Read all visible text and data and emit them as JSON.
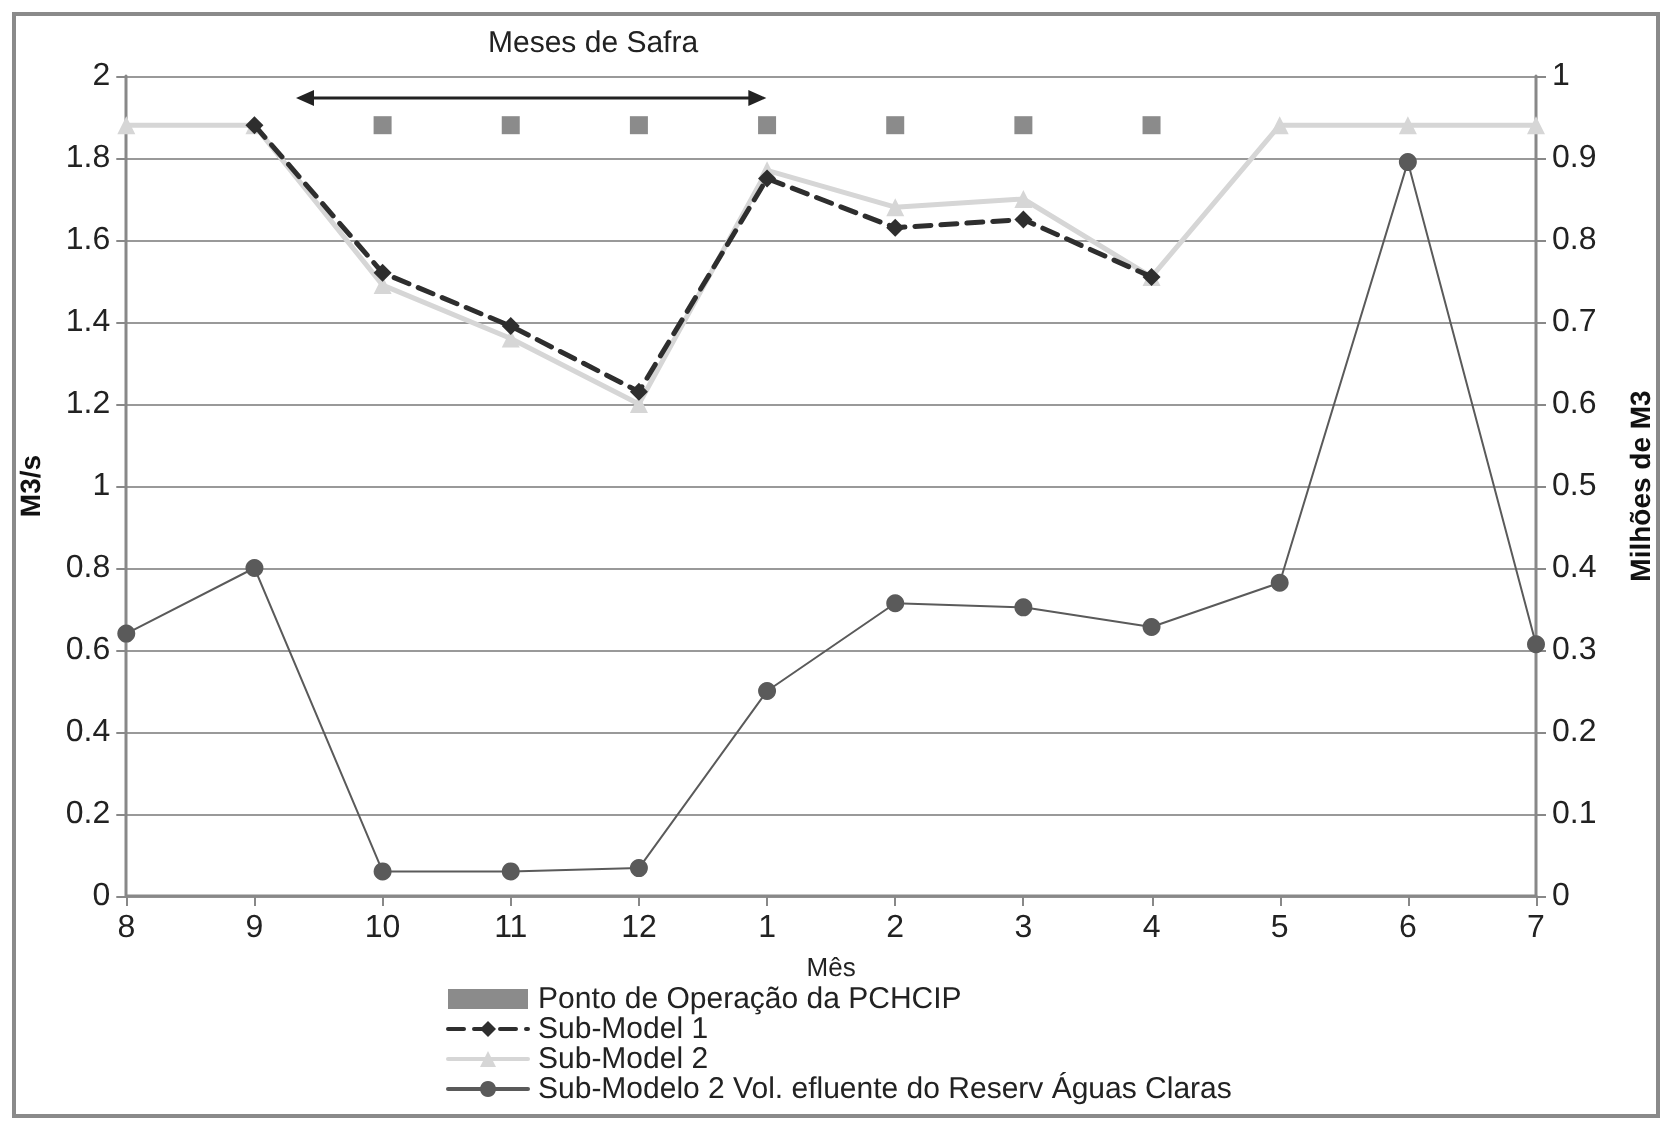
{
  "chart_data": {
    "type": "line",
    "categories": [
      "8",
      "9",
      "10",
      "11",
      "12",
      "1",
      "2",
      "3",
      "4",
      "5",
      "6",
      "7"
    ],
    "xlabel": "Mês",
    "ylabel": "M3/s",
    "y2label": "Milhões de M3",
    "ylim": [
      0,
      2
    ],
    "yticks": [
      0,
      0.2,
      0.4,
      0.6,
      0.8,
      1,
      1.2,
      1.4,
      1.6,
      1.8,
      2
    ],
    "y2lim": [
      0,
      1
    ],
    "y2ticks": [
      0,
      0.1,
      0.2,
      0.3,
      0.4,
      0.5,
      0.6,
      0.7,
      0.8,
      0.9,
      1
    ],
    "series": [
      {
        "name": "Ponto de Operação da PCHCIP",
        "type": "scatter",
        "color": "#6e6e6e",
        "marker": "square",
        "values": [
          null,
          null,
          1.88,
          1.88,
          1.88,
          1.88,
          1.88,
          1.88,
          1.88,
          null,
          null,
          null
        ]
      },
      {
        "name": "Sub-Model 1",
        "color": "#2e2e2e",
        "marker": "diamond",
        "line_style": "dashed",
        "values": [
          null,
          1.88,
          1.52,
          1.39,
          1.23,
          1.75,
          1.63,
          1.65,
          1.51,
          null,
          null,
          null
        ]
      },
      {
        "name": "Sub-Model 2",
        "color": "#d6d6d6",
        "marker": "triangle",
        "line_style": "solid",
        "values": [
          1.88,
          1.88,
          1.49,
          1.36,
          1.2,
          1.77,
          1.68,
          1.7,
          1.51,
          1.88,
          1.88,
          1.88
        ]
      },
      {
        "name": "Sub-Modelo 2 Vol. efluente do Reserv Águas Claras",
        "color": "#5a5a5a",
        "marker": "circle",
        "line_style": "solid",
        "axis": "y2",
        "values": [
          0.32,
          0.4,
          0.03,
          0.03,
          0.034,
          0.25,
          0.357,
          0.352,
          0.328,
          0.382,
          0.895,
          0.307
        ]
      }
    ],
    "annotations": [
      "Meses de Safra"
    ],
    "grid": "y",
    "legend": "bottom"
  }
}
